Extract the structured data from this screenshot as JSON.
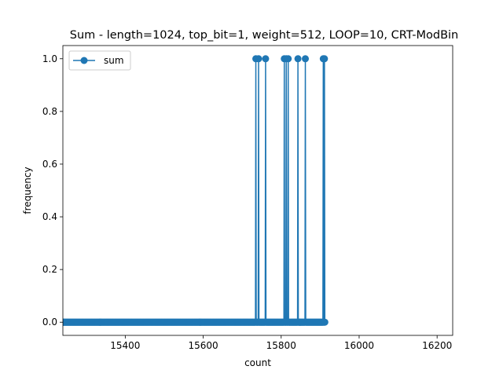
{
  "chart_data": {
    "type": "line",
    "title": "Sum - length=1024, top_bit=1, weight=512, LOOP=10, CRT-ModBin",
    "xlabel": "count",
    "ylabel": "frequency",
    "xlim": [
      15240,
      16240
    ],
    "ylim": [
      -0.05,
      1.05
    ],
    "xticks": [
      15400,
      15600,
      15800,
      16000,
      16200
    ],
    "xtick_labels": [
      "15400",
      "15600",
      "15800",
      "16000",
      "16200"
    ],
    "yticks": [
      0.0,
      0.2,
      0.4,
      0.6,
      0.8,
      1.0
    ],
    "ytick_labels": [
      "0.0",
      "0.2",
      "0.4",
      "0.6",
      "0.8",
      "1.0"
    ],
    "grid": false,
    "legend": "top-left",
    "series": [
      {
        "name": "sum",
        "color": "#1f77b4",
        "marker": "circle",
        "x_start": 15240,
        "x_end": 15912,
        "default_y": 0,
        "spikes": [
          15735,
          15742,
          15760,
          15808,
          15813,
          15818,
          15843,
          15862,
          15908,
          15911
        ]
      }
    ]
  }
}
